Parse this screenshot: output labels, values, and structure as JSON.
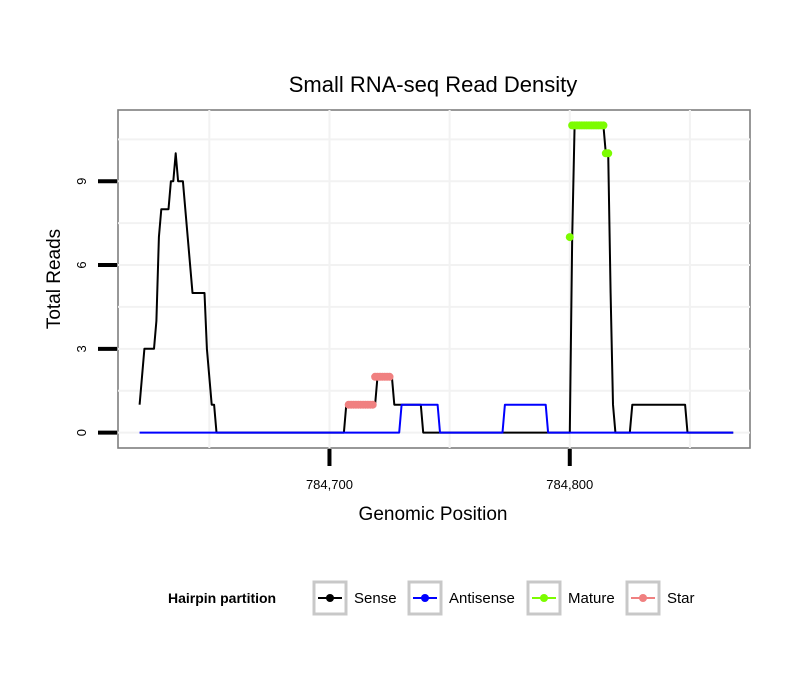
{
  "chart_data": {
    "type": "line",
    "title": "Small RNA-seq Read Density",
    "xlabel": "Genomic Position",
    "ylabel": "Total Reads",
    "xlim": [
      784612,
      784875
    ],
    "ylim": [
      -0.55,
      11.55
    ],
    "xticks": [
      784700,
      784800
    ],
    "xtick_labels": [
      "784,700",
      "784,800"
    ],
    "yticks": [
      0,
      3,
      6,
      9
    ],
    "ytick_labels": [
      "0",
      "3",
      "6",
      "9"
    ],
    "grid": true,
    "legend": {
      "title": "Hairpin partition",
      "position": "bottom",
      "entries": [
        "Sense",
        "Antisense",
        "Mature",
        "Star"
      ]
    },
    "series": [
      {
        "name": "Sense",
        "color": "#000000",
        "style": "line",
        "points": [
          [
            784621,
            1
          ],
          [
            784622,
            2
          ],
          [
            784623,
            3
          ],
          [
            784624,
            3
          ],
          [
            784625,
            3
          ],
          [
            784626,
            3
          ],
          [
            784627,
            3
          ],
          [
            784628,
            4
          ],
          [
            784629,
            7
          ],
          [
            784630,
            8
          ],
          [
            784631,
            8
          ],
          [
            784632,
            8
          ],
          [
            784633,
            8
          ],
          [
            784634,
            9
          ],
          [
            784635,
            9
          ],
          [
            784636,
            10
          ],
          [
            784637,
            9
          ],
          [
            784638,
            9
          ],
          [
            784639,
            9
          ],
          [
            784640,
            8
          ],
          [
            784641,
            7
          ],
          [
            784642,
            6
          ],
          [
            784643,
            5
          ],
          [
            784644,
            5
          ],
          [
            784645,
            5
          ],
          [
            784646,
            5
          ],
          [
            784647,
            5
          ],
          [
            784648,
            5
          ],
          [
            784649,
            3
          ],
          [
            784650,
            2
          ],
          [
            784651,
            1
          ],
          [
            784652,
            1
          ],
          [
            784653,
            0
          ],
          [
            784654,
            0
          ],
          [
            784706,
            0
          ],
          [
            784707,
            1
          ],
          [
            784712,
            1
          ],
          [
            784713,
            1
          ],
          [
            784719,
            1
          ],
          [
            784720,
            2
          ],
          [
            784726,
            2
          ],
          [
            784727,
            1
          ],
          [
            784738,
            1
          ],
          [
            784739,
            0
          ],
          [
            784800,
            0
          ],
          [
            784801,
            7
          ],
          [
            784802,
            11
          ],
          [
            784814,
            11
          ],
          [
            784815,
            10
          ],
          [
            784816,
            10
          ],
          [
            784817,
            5
          ],
          [
            784818,
            1
          ],
          [
            784819,
            0
          ],
          [
            784825,
            0
          ],
          [
            784826,
            1
          ],
          [
            784848,
            1
          ],
          [
            784849,
            0
          ],
          [
            784868,
            0
          ]
        ]
      },
      {
        "name": "Antisense",
        "color": "#0000ff",
        "style": "line",
        "points": [
          [
            784621,
            0
          ],
          [
            784729,
            0
          ],
          [
            784730,
            1
          ],
          [
            784745,
            1
          ],
          [
            784746,
            0
          ],
          [
            784772,
            0
          ],
          [
            784773,
            1
          ],
          [
            784790,
            1
          ],
          [
            784791,
            0
          ],
          [
            784868,
            0
          ]
        ]
      },
      {
        "name": "Mature",
        "color": "#7cfc00",
        "style": "points",
        "points": [
          [
            784800,
            7
          ],
          [
            784801,
            11
          ],
          [
            784802,
            11
          ],
          [
            784803,
            11
          ],
          [
            784804,
            11
          ],
          [
            784805,
            11
          ],
          [
            784806,
            11
          ],
          [
            784807,
            11
          ],
          [
            784808,
            11
          ],
          [
            784809,
            11
          ],
          [
            784810,
            11
          ],
          [
            784811,
            11
          ],
          [
            784812,
            11
          ],
          [
            784813,
            11
          ],
          [
            784814,
            11
          ],
          [
            784815,
            10
          ],
          [
            784816,
            10
          ]
        ]
      },
      {
        "name": "Star",
        "color": "#f08080",
        "style": "points",
        "points": [
          [
            784708,
            1
          ],
          [
            784709,
            1
          ],
          [
            784710,
            1
          ],
          [
            784711,
            1
          ],
          [
            784712,
            1
          ],
          [
            784713,
            1
          ],
          [
            784714,
            1
          ],
          [
            784715,
            1
          ],
          [
            784716,
            1
          ],
          [
            784717,
            1
          ],
          [
            784718,
            1
          ],
          [
            784719,
            2
          ],
          [
            784720,
            2
          ],
          [
            784721,
            2
          ],
          [
            784722,
            2
          ],
          [
            784723,
            2
          ],
          [
            784724,
            2
          ],
          [
            784725,
            2
          ]
        ]
      }
    ]
  }
}
